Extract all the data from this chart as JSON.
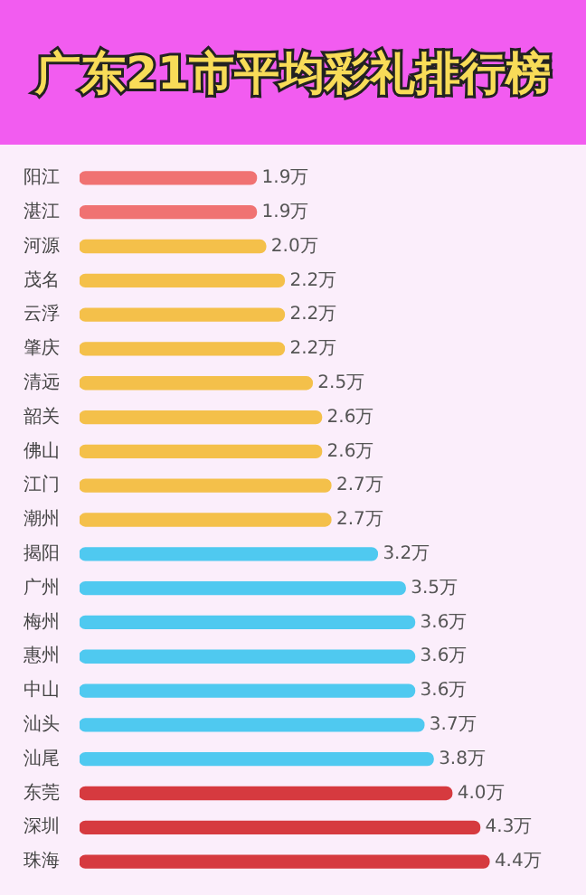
{
  "chart_data": {
    "type": "bar",
    "orientation": "horizontal",
    "title": "广东21市平均彩礼排行榜",
    "categories": [
      "阳江",
      "湛江",
      "河源",
      "茂名",
      "云浮",
      "肇庆",
      "清远",
      "韶关",
      "佛山",
      "江门",
      "潮州",
      "揭阳",
      "广州",
      "梅州",
      "惠州",
      "中山",
      "汕头",
      "汕尾",
      "东莞",
      "深圳",
      "珠海"
    ],
    "values": [
      1.9,
      1.9,
      2.0,
      2.2,
      2.2,
      2.2,
      2.5,
      2.6,
      2.6,
      2.7,
      2.7,
      3.2,
      3.5,
      3.6,
      3.6,
      3.6,
      3.7,
      3.8,
      4.0,
      4.3,
      4.4
    ],
    "value_labels": [
      "1.9万",
      "1.9万",
      "2.0万",
      "2.2万",
      "2.2万",
      "2.2万",
      "2.5万",
      "2.6万",
      "2.6万",
      "2.7万",
      "2.7万",
      "3.2万",
      "3.5万",
      "3.6万",
      "3.6万",
      "3.6万",
      "3.7万",
      "3.8万",
      "4.0万",
      "4.3万",
      "4.4万"
    ],
    "colors": [
      "#f07272",
      "#f07272",
      "#f4c04a",
      "#f4c04a",
      "#f4c04a",
      "#f4c04a",
      "#f4c04a",
      "#f4c04a",
      "#f4c04a",
      "#f4c04a",
      "#f4c04a",
      "#4fc9f0",
      "#4fc9f0",
      "#4fc9f0",
      "#4fc9f0",
      "#4fc9f0",
      "#4fc9f0",
      "#4fc9f0",
      "#d63a3f",
      "#d63a3f",
      "#d63a3f"
    ],
    "legend": false
  }
}
